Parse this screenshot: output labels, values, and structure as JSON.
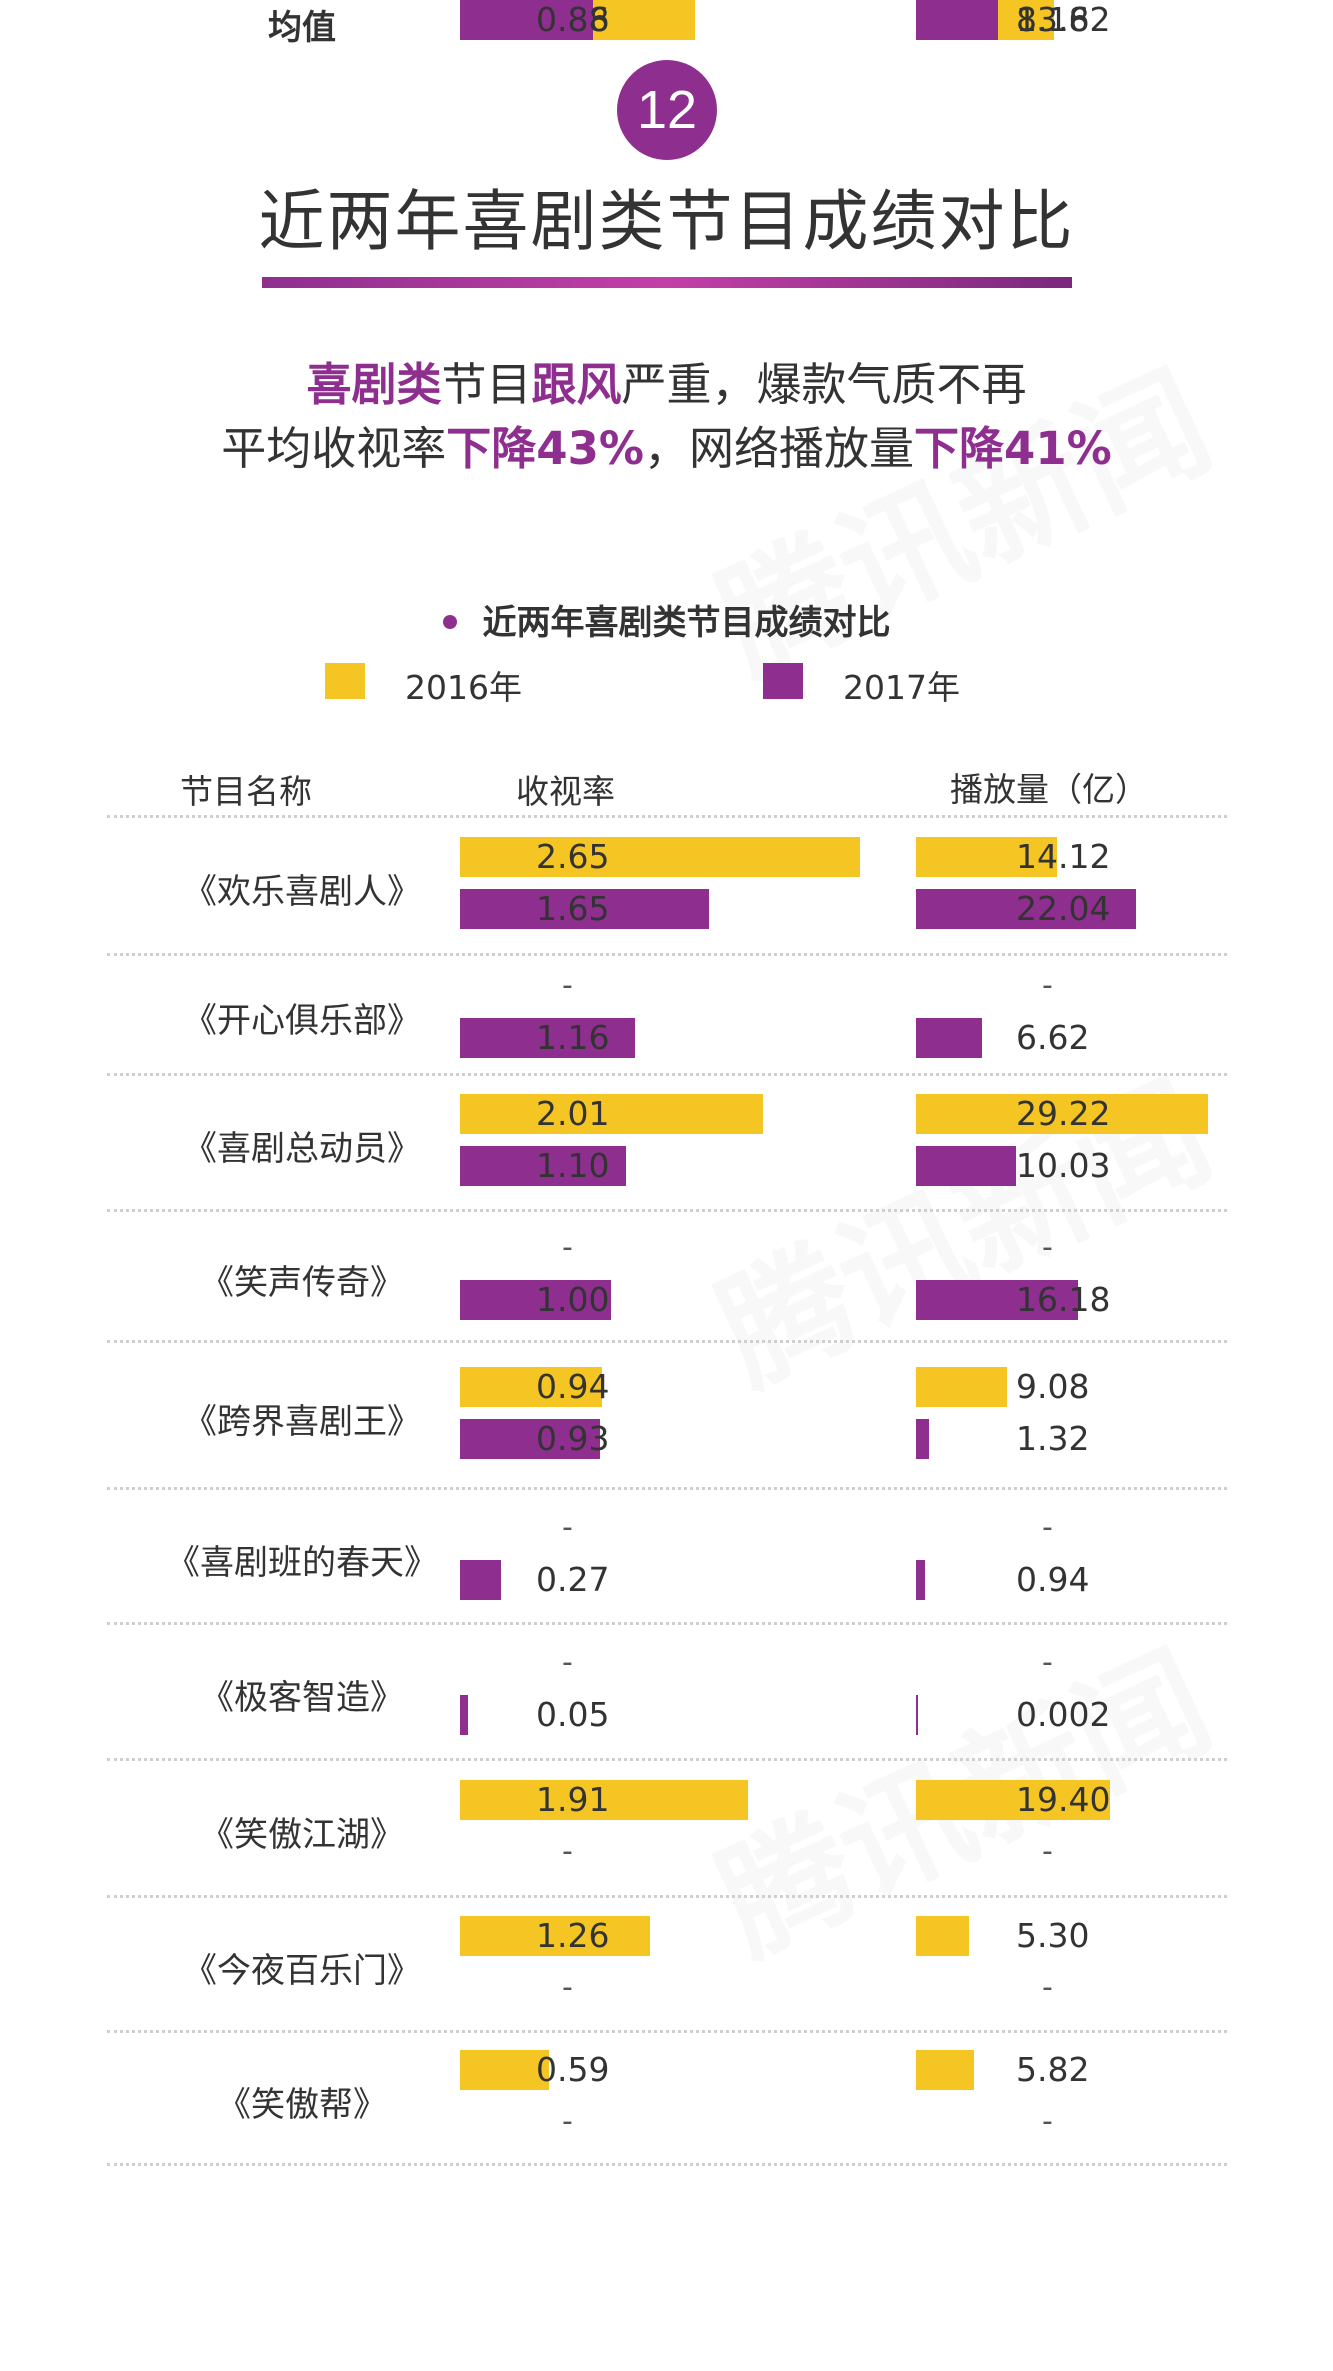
{
  "badge": "12",
  "title": "近两年喜剧类节目成绩对比",
  "subtitle_line1": {
    "p1": "喜剧类",
    "p2": "节目",
    "p3": "跟风",
    "p4": "严重，爆款气质不再"
  },
  "subtitle_line2": {
    "p1": "平均收视率",
    "p2": "下降43%",
    "p3": "，网络播放量",
    "p4": "下降41%"
  },
  "watermark": "腾讯新闻",
  "chart_data": {
    "type": "bar",
    "title": "近两年喜剧类节目成绩对比",
    "legend": [
      "2016年",
      "2017年"
    ],
    "colors": {
      "2016年": "#f5c623",
      "2017年": "#8e2f8f"
    },
    "headers": {
      "program": "节目名称",
      "rating": "收视率",
      "views": "播放量（亿）"
    },
    "rating_max": 2.65,
    "views_max": 29.22,
    "missing_label": "-",
    "rows": [
      {
        "name": "《欢乐喜剧人》",
        "r16": 2.65,
        "r17": 1.65,
        "v16": 14.12,
        "v17": 22.04,
        "r16_label": "2.65",
        "r17_label": "1.65",
        "v16_label": "14.12",
        "v17_label": "22.04"
      },
      {
        "name": "《开心俱乐部》",
        "r16": null,
        "r17": 1.16,
        "v16": null,
        "v17": 6.62,
        "r16_label": "-",
        "r17_label": "1.16",
        "v16_label": "-",
        "v17_label": "6.62"
      },
      {
        "name": "《喜剧总动员》",
        "r16": 2.01,
        "r17": 1.1,
        "v16": 29.22,
        "v17": 10.03,
        "r16_label": "2.01",
        "r17_label": "1.10",
        "v16_label": "29.22",
        "v17_label": "10.03"
      },
      {
        "name": "《笑声传奇》",
        "r16": null,
        "r17": 1.0,
        "v16": null,
        "v17": 16.18,
        "r16_label": "-",
        "r17_label": "1.00",
        "v16_label": "-",
        "v17_label": "16.18"
      },
      {
        "name": "《跨界喜剧王》",
        "r16": 0.94,
        "r17": 0.93,
        "v16": 9.08,
        "v17": 1.32,
        "r16_label": "0.94",
        "r17_label": "0.93",
        "v16_label": "9.08",
        "v17_label": "1.32"
      },
      {
        "name": "《喜剧班的春天》",
        "r16": null,
        "r17": 0.27,
        "v16": null,
        "v17": 0.94,
        "r16_label": "-",
        "r17_label": "0.27",
        "v16_label": "-",
        "v17_label": "0.94"
      },
      {
        "name": "《极客智造》",
        "r16": null,
        "r17": 0.05,
        "v16": null,
        "v17": 0.002,
        "r16_label": "-",
        "r17_label": "0.05",
        "v16_label": "-",
        "v17_label": "0.002"
      },
      {
        "name": "《笑傲江湖》",
        "r16": 1.91,
        "r17": null,
        "v16": 19.4,
        "v17": null,
        "r16_label": "1.91",
        "r17_label": "-",
        "v16_label": "19.40",
        "v17_label": "-"
      },
      {
        "name": "《今夜百乐门》",
        "r16": 1.26,
        "r17": null,
        "v16": 5.3,
        "v17": null,
        "r16_label": "1.26",
        "r17_label": "-",
        "v16_label": "5.30",
        "v17_label": "-"
      },
      {
        "name": "《笑傲帮》",
        "r16": 0.59,
        "r17": null,
        "v16": 5.82,
        "v17": null,
        "r16_label": "0.59",
        "r17_label": "-",
        "v16_label": "5.82",
        "v17_label": "-"
      },
      {
        "name": "均值",
        "r16": 1.56,
        "r17": 0.88,
        "v16": 13.82,
        "v17": 8.16,
        "r16_label": "1.56",
        "r17_label": "0.88",
        "v16_label": "13.82",
        "v17_label": "8.16",
        "bold": true
      }
    ]
  }
}
